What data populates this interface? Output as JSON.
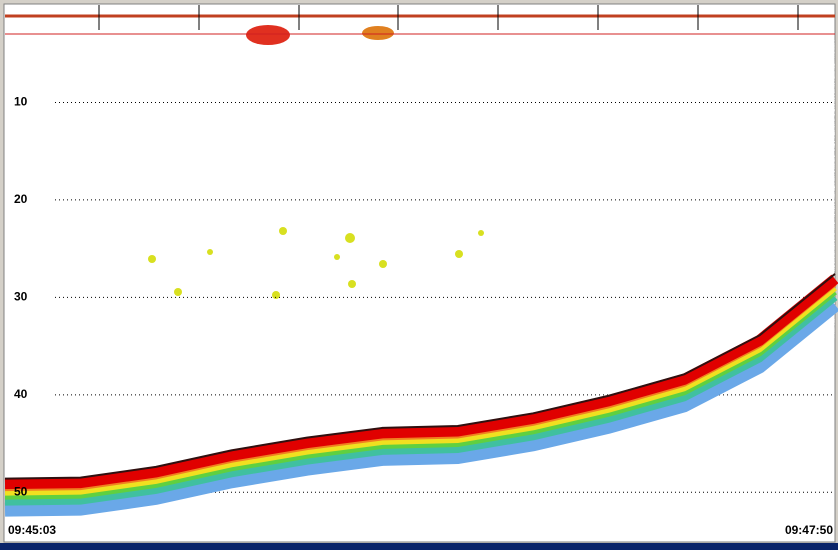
{
  "chart_data": {
    "type": "echogram",
    "categories": [
      "09:45:03",
      null,
      null,
      null,
      null,
      null,
      null,
      null,
      null,
      null,
      null,
      "09:47:50"
    ],
    "ylim": [
      0,
      55
    ],
    "yticks": [
      10,
      20,
      30,
      40,
      50
    ],
    "grid": true,
    "inverted": true,
    "series": [
      {
        "color": "#e00000",
        "values": [
          48.7,
          48.6,
          47.5,
          45.8,
          44.5,
          43.5,
          43.3,
          42.0,
          40.2,
          38.0,
          34.0,
          27.7
        ]
      }
    ]
  }
}
